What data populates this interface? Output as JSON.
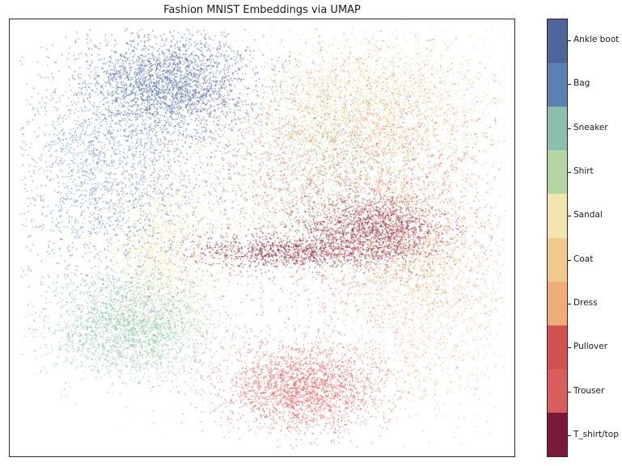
{
  "chart_data": {
    "type": "scatter",
    "title": "Fashion MNIST Embeddings via UMAP",
    "xlabel": "",
    "ylabel": "",
    "axes_ticks": "none",
    "grid": false,
    "colorbar": {
      "position": "right",
      "labels": [
        "T_shirt/top",
        "Trouser",
        "Pullover",
        "Dress",
        "Coat",
        "Sandal",
        "Shirt",
        "Sneaker",
        "Bag",
        "Ankle boot"
      ]
    },
    "series": [
      {
        "name": "T_shirt/top",
        "color": "#7a1a3a",
        "clusters": [
          {
            "center": [
              0.73,
              0.48
            ],
            "spread": [
              0.07,
              0.04
            ],
            "weight": 0.6
          },
          {
            "center": [
              0.55,
              0.53
            ],
            "spread": [
              0.1,
              0.02
            ],
            "weight": 0.4
          }
        ]
      },
      {
        "name": "Trouser",
        "color": "#d95f5f",
        "clusters": [
          {
            "center": [
              0.58,
              0.84
            ],
            "spread": [
              0.08,
              0.05
            ],
            "weight": 1.0
          }
        ]
      },
      {
        "name": "Pullover",
        "color": "#d2524f",
        "clusters": [
          {
            "center": [
              0.66,
              0.38
            ],
            "spread": [
              0.14,
              0.15
            ],
            "weight": 1.0
          }
        ]
      },
      {
        "name": "Dress",
        "color": "#f0ac77",
        "clusters": [
          {
            "center": [
              0.82,
              0.56
            ],
            "spread": [
              0.09,
              0.15
            ],
            "weight": 1.0
          }
        ]
      },
      {
        "name": "Coat",
        "color": "#efca8c",
        "clusters": [
          {
            "center": [
              0.72,
              0.2
            ],
            "spread": [
              0.13,
              0.08
            ],
            "weight": 1.0
          }
        ]
      },
      {
        "name": "Sandal",
        "color": "#f2e6b0",
        "clusters": [
          {
            "center": [
              0.3,
              0.55
            ],
            "spread": [
              0.06,
              0.12
            ],
            "weight": 1.0
          }
        ]
      },
      {
        "name": "Shirt",
        "color": "#b4d6a2",
        "clusters": [
          {
            "center": [
              0.6,
              0.35
            ],
            "spread": [
              0.12,
              0.14
            ],
            "weight": 1.0
          }
        ]
      },
      {
        "name": "Sneaker",
        "color": "#8ac0ab",
        "clusters": [
          {
            "center": [
              0.24,
              0.7
            ],
            "spread": [
              0.08,
              0.06
            ],
            "weight": 1.0
          }
        ]
      },
      {
        "name": "Bag",
        "color": "#5d80b2",
        "clusters": [
          {
            "center": [
              0.2,
              0.35
            ],
            "spread": [
              0.1,
              0.15
            ],
            "weight": 1.0
          }
        ]
      },
      {
        "name": "Ankle boot",
        "color": "#4e6699",
        "clusters": [
          {
            "center": [
              0.32,
              0.15
            ],
            "spread": [
              0.08,
              0.06
            ],
            "weight": 1.0
          }
        ]
      }
    ]
  }
}
